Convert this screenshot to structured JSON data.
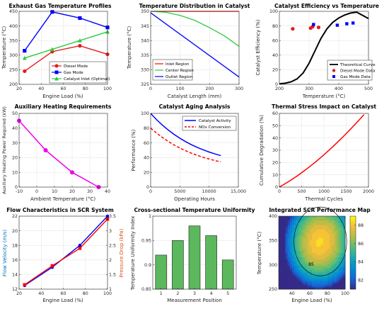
{
  "chart_data": [
    {
      "type": "line",
      "title": "Exhaust Gas Temperature Profiles",
      "xlabel": "Engine Load (%)",
      "ylabel": "Temperature (°C)",
      "xlim": [
        20,
        100
      ],
      "ylim": [
        200,
        450
      ],
      "xticks": [
        20,
        40,
        60,
        80,
        100
      ],
      "yticks": [
        200,
        250,
        300,
        350,
        400,
        450
      ],
      "grid": true,
      "legend": "bottom-right",
      "series": [
        {
          "name": "Diesel Mode",
          "color": "#e41a1c",
          "marker": "circle",
          "x": [
            25,
            50,
            75,
            100
          ],
          "y": [
            245,
            312,
            332,
            303
          ]
        },
        {
          "name": "Gas Mode",
          "color": "#0000ff",
          "marker": "square",
          "x": [
            25,
            50,
            75,
            100
          ],
          "y": [
            315,
            448,
            427,
            395
          ]
        },
        {
          "name": "Catalyst Inlet (Optimal)",
          "color": "#2ecc40",
          "marker": "triangle",
          "x": [
            25,
            50,
            75,
            100
          ],
          "y": [
            290,
            320,
            350,
            380
          ]
        }
      ]
    },
    {
      "type": "line",
      "title": "Temperature Distribution in Catalyst",
      "xlabel": "Catalyst Length (mm)",
      "ylabel": "Temperature (°C)",
      "xlim": [
        0,
        300
      ],
      "ylim": [
        325,
        350
      ],
      "xticks": [
        0,
        100,
        200,
        300
      ],
      "yticks": [
        325,
        330,
        335,
        340,
        345,
        350
      ],
      "grid": true,
      "legend": "bottom-left",
      "series": [
        {
          "name": "Inlet Region",
          "color": "#ff0000",
          "x": [
            0,
            300
          ],
          "y": [
            350,
            350
          ]
        },
        {
          "name": "Center Region",
          "color": "#2ecc40",
          "x": [
            0,
            50,
            100,
            150,
            200,
            250,
            300
          ],
          "y": [
            350,
            349.7,
            348.6,
            346.9,
            344.4,
            341.6,
            338
          ]
        },
        {
          "name": "Outlet Region",
          "color": "#0000ff",
          "x": [
            0,
            300
          ],
          "y": [
            349.5,
            327.5
          ]
        }
      ]
    },
    {
      "type": "scatter",
      "title": "Catalyst Efficiency vs Temperature",
      "xlabel": "Temperature (°C)",
      "ylabel": "Catalyst Efficiency (%)",
      "xlim": [
        200,
        500
      ],
      "ylim": [
        0,
        100
      ],
      "xticks": [
        200,
        300,
        400,
        500
      ],
      "yticks": [
        0,
        20,
        40,
        60,
        80,
        100
      ],
      "grid": true,
      "legend": "bottom-right",
      "series": [
        {
          "name": "Theoretical Curve",
          "color": "#000000",
          "kind": "line",
          "x": [
            200,
            220,
            240,
            260,
            280,
            300,
            320,
            340,
            360,
            380,
            400,
            420,
            440,
            460,
            480,
            500
          ],
          "y": [
            0.7,
            1.6,
            3.5,
            7.6,
            15.6,
            28.9,
            46.0,
            62.9,
            76.0,
            85.0,
            90.9,
            95.0,
            97.7,
            98.9,
            94.5,
            90.0
          ]
        },
        {
          "name": "Diesel Mode Data",
          "color": "#e41a1c",
          "kind": "circle",
          "x": [
            245,
            305,
            312,
            332
          ],
          "y": [
            76,
            77,
            79,
            78
          ]
        },
        {
          "name": "Gas Mode Data",
          "color": "#0000ff",
          "kind": "square",
          "x": [
            315,
            395,
            427,
            448
          ],
          "y": [
            82,
            81,
            83,
            84
          ]
        }
      ]
    },
    {
      "type": "line",
      "title": "Auxiliary Heating Requirements",
      "xlabel": "Ambient Temperature (°C)",
      "ylabel": "Auxiliary Heating Power Required (kW)",
      "xlim": [
        -10,
        40
      ],
      "ylim": [
        0,
        50
      ],
      "xticks": [
        -10,
        0,
        10,
        20,
        30,
        40
      ],
      "yticks": [
        0,
        10,
        20,
        30,
        40,
        50
      ],
      "grid": true,
      "series": [
        {
          "color": "#ee00ee",
          "marker": "circle",
          "x": [
            -10,
            5,
            20,
            35
          ],
          "y": [
            45,
            25,
            10,
            0
          ]
        }
      ]
    },
    {
      "type": "line",
      "title": "Catalyst Aging Analysis",
      "xlabel": "Operating Hours",
      "ylabel": "Performance (%)",
      "xlim": [
        0,
        15000
      ],
      "ylim": [
        0,
        100
      ],
      "xticks": [
        0,
        5000,
        10000,
        15000
      ],
      "xticklabels": [
        "0",
        "5000",
        "10000",
        "15,000"
      ],
      "yticks": [
        0,
        20,
        40,
        60,
        80,
        100
      ],
      "grid": true,
      "legend": "top-right",
      "series": [
        {
          "name": "Catalyst Activity",
          "color": "#0000ff",
          "dash": false,
          "x": [
            0,
            1000,
            2000,
            3000,
            4000,
            5000,
            6000,
            7000,
            8000,
            9000,
            10000,
            11000,
            12000
          ],
          "y": [
            100,
            91.6,
            84.2,
            77.5,
            71.5,
            66.3,
            61.6,
            57.4,
            53.8,
            50.5,
            47.6,
            45.0,
            42.7
          ]
        },
        {
          "name": "NOx Conversion",
          "color": "#ff0000",
          "dash": true,
          "x": [
            0,
            1000,
            2000,
            3000,
            4000,
            5000,
            6000,
            7000,
            8000,
            9000,
            10000,
            11000,
            12000
          ],
          "y": [
            80,
            73.3,
            67.4,
            62.0,
            57.2,
            53.0,
            49.3,
            45.9,
            43.0,
            40.4,
            38.1,
            36.0,
            34.2
          ]
        }
      ]
    },
    {
      "type": "line",
      "title": "Thermal Stress Impact on Catalyst",
      "xlabel": "Thermal Cycles",
      "ylabel": "Cumulative Degradation (%)",
      "xlim": [
        0,
        2000
      ],
      "ylim": [
        0,
        60
      ],
      "xticks": [
        0,
        500,
        1000,
        1500,
        2000
      ],
      "yticks": [
        0,
        10,
        20,
        30,
        40,
        50,
        60
      ],
      "grid": true,
      "series": [
        {
          "color": "#ff0000",
          "x": [
            0,
            200,
            400,
            600,
            800,
            1000,
            1200,
            1400,
            1600,
            1800,
            1900
          ],
          "y": [
            0,
            4.3,
            9.1,
            14.4,
            20.1,
            26.3,
            32.9,
            39.9,
            47.3,
            55.0,
            59.0
          ]
        }
      ]
    },
    {
      "type": "line",
      "title": "Flow Characteristics in SCR System",
      "xlabel": "Engine Load (%)",
      "ylabel": "Flow Velocity (m/s)",
      "ylabel_right": "Pressure Drop (kPa)",
      "xlim": [
        20,
        100
      ],
      "ylim": [
        12,
        22
      ],
      "ylim_right": [
        1,
        3.5
      ],
      "xticks": [
        20,
        40,
        60,
        80,
        100
      ],
      "yticks": [
        12,
        14,
        16,
        18,
        20,
        22
      ],
      "yticks_right": [
        1,
        1.5,
        2,
        2.5,
        3,
        3.5
      ],
      "grid": true,
      "series": [
        {
          "color": "#0000ff",
          "marker": "circle",
          "axis": "left",
          "x": [
            25,
            50,
            75,
            100
          ],
          "y": [
            12.5,
            15.0,
            18.0,
            22.0
          ]
        },
        {
          "color": "#ff0000",
          "marker": "square",
          "axis": "right",
          "x": [
            25,
            50,
            75,
            100
          ],
          "y": [
            1.15,
            1.8,
            2.4,
            3.4
          ]
        }
      ]
    },
    {
      "type": "bar",
      "title": "Cross-sectional Temperature Uniformity",
      "xlabel": "Measurement Position",
      "ylabel": "Temperature Uniformity Index",
      "ylim": [
        0.85,
        1.0
      ],
      "categories": [
        "1",
        "2",
        "3",
        "4",
        "5"
      ],
      "values": [
        0.92,
        0.95,
        0.98,
        0.96,
        0.91
      ],
      "yticks": [
        0.85,
        0.9,
        0.95,
        1
      ],
      "ytick_labels": [
        "0.85",
        "0.9",
        "0.95",
        "1"
      ],
      "bar_color": "#5cb85c",
      "grid": true
    },
    {
      "type": "heatmap",
      "title": "Integrated SCR Performance Map",
      "xlabel": "Engine Load (%)",
      "ylabel": "Temperature (°C)",
      "xlim": [
        25,
        100
      ],
      "ylim": [
        250,
        400
      ],
      "xticks": [
        40,
        60,
        80,
        100
      ],
      "yticks": [
        250,
        300,
        350,
        400
      ],
      "colorbar_ticks": [
        82,
        84,
        86,
        88
      ],
      "colorbar_range": [
        81,
        89
      ],
      "contour_label": "85",
      "colormap": "parula"
    }
  ]
}
